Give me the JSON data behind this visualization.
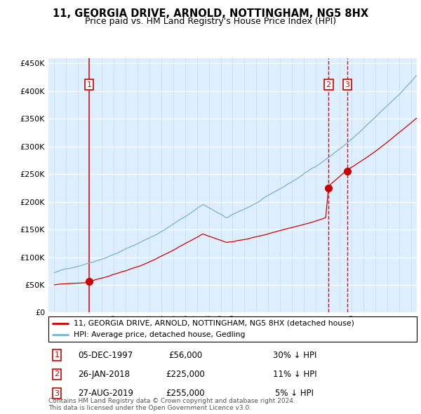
{
  "title": "11, GEORGIA DRIVE, ARNOLD, NOTTINGHAM, NG5 8HX",
  "subtitle": "Price paid vs. HM Land Registry's House Price Index (HPI)",
  "legend_line1": "11, GEORGIA DRIVE, ARNOLD, NOTTINGHAM, NG5 8HX (detached house)",
  "legend_line2": "HPI: Average price, detached house, Gedling",
  "transactions": [
    {
      "num": "1",
      "date": "05-DEC-1997",
      "price": "£56,000",
      "hpi_diff": "30% ↓ HPI",
      "x_year": 1997.92,
      "y_val": 56000,
      "vline_style": "solid"
    },
    {
      "num": "2",
      "date": "26-JAN-2018",
      "price": "£225,000",
      "hpi_diff": "11% ↓ HPI",
      "x_year": 2018.07,
      "y_val": 225000,
      "vline_style": "dashed"
    },
    {
      "num": "3",
      "date": "27-AUG-2019",
      "price": "£255,000",
      "hpi_diff": "5% ↓ HPI",
      "x_year": 2019.65,
      "y_val": 255000,
      "vline_style": "dashed"
    }
  ],
  "footer": "Contains HM Land Registry data © Crown copyright and database right 2024.\nThis data is licensed under the Open Government Licence v3.0.",
  "ylim": [
    0,
    460000
  ],
  "yticks": [
    0,
    50000,
    100000,
    150000,
    200000,
    250000,
    300000,
    350000,
    400000,
    450000
  ],
  "xlim_start": 1994.5,
  "xlim_end": 2025.5,
  "red_line_color": "#cc0000",
  "blue_line_color": "#7ab0d4",
  "bg_color": "#ddeeff",
  "box_color": "#cc0000",
  "vline_color": "#cc0000"
}
